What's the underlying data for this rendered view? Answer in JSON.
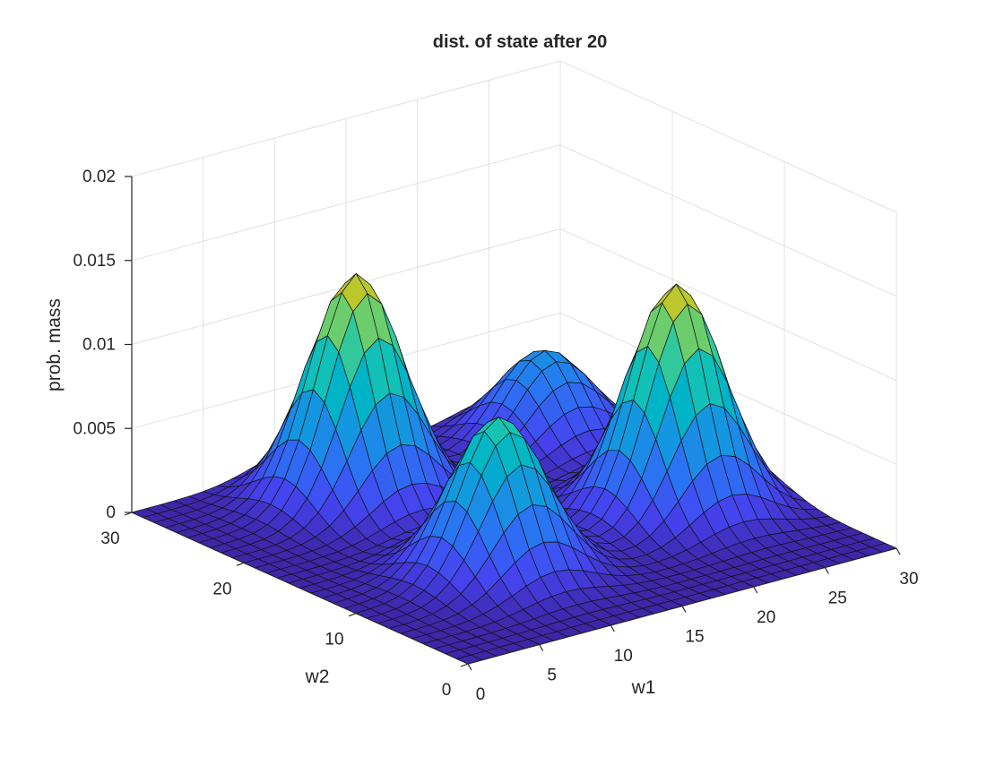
{
  "chart_data": {
    "type": "surface",
    "title": "dist. of state after 20",
    "xlabel": "w1",
    "ylabel": "w2",
    "zlabel": "prob. mass",
    "xlim": [
      0,
      30
    ],
    "ylim": [
      0,
      30
    ],
    "zlim": [
      0,
      0.02
    ],
    "x_ticks": [
      "0",
      "5",
      "10",
      "15",
      "20",
      "25",
      "30"
    ],
    "y_ticks": [
      "0",
      "10",
      "20",
      "30"
    ],
    "z_ticks": [
      "0",
      "0.005",
      "0.01",
      "0.015",
      "0.02"
    ],
    "grid": true,
    "colormap": "parula",
    "grid_step": 1,
    "peaks": [
      {
        "w1": 11,
        "w2": 24,
        "height": 0.0135
      },
      {
        "w1": 24,
        "w2": 12,
        "height": 0.0135
      },
      {
        "w1": 10,
        "w2": 10,
        "height": 0.0094
      },
      {
        "w1": 25,
        "w2": 25,
        "height": 0.0054
      }
    ],
    "peak_spread": 2.7,
    "valley_floor": 0.0
  }
}
